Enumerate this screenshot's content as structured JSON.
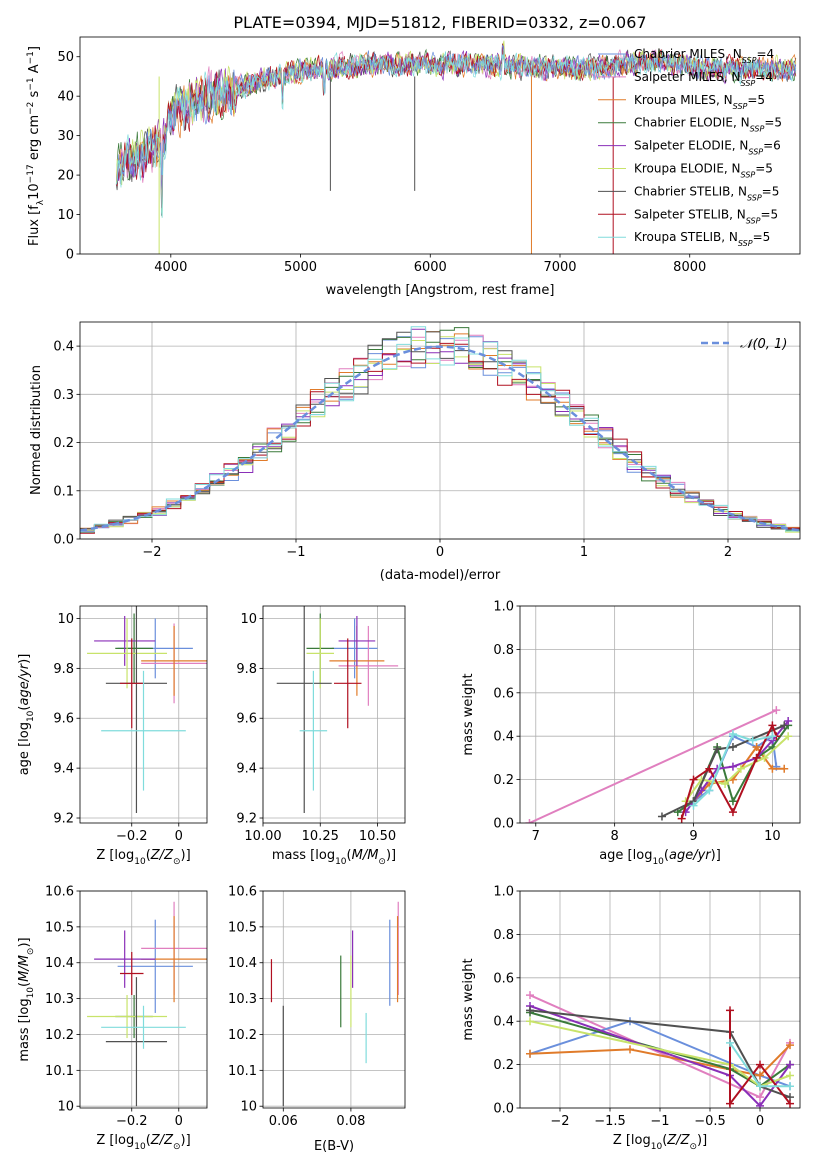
{
  "colors": {
    "Chabrier MILES": "#6a8fdc",
    "Salpeter MILES": "#e07fbf",
    "Kroupa MILES": "#e07b2a",
    "Chabrier ELODIE": "#3a7a3a",
    "Salpeter ELODIE": "#8a2fb8",
    "Kroupa ELODIE": "#c8e36a",
    "Chabrier STELIB": "#505050",
    "Salpeter STELIB": "#b01020",
    "Kroupa STELIB": "#80dcdc",
    "normal": "#6a8fdc"
  },
  "chart_data": [
    {
      "type": "line",
      "title": "PLATE=0394, MJD=51812, FIBERID=0332, z=0.067",
      "xlabel": "wavelength [Angstrom, rest frame]",
      "ylabel": "Flux [f_λ10^-17 erg cm^-2 s^-1 A^-1]",
      "xlim": [
        3300,
        8850
      ],
      "ylim": [
        0,
        55
      ],
      "xticks": [
        4000,
        5000,
        6000,
        7000,
        8000
      ],
      "yticks": [
        0,
        10,
        20,
        30,
        40,
        50
      ],
      "grid": false,
      "legend_position": "right",
      "spectrum_trend": [
        [
          3580,
          22
        ],
        [
          3700,
          24
        ],
        [
          3850,
          26
        ],
        [
          3950,
          28
        ],
        [
          3990,
          34
        ],
        [
          4050,
          37
        ],
        [
          4300,
          40
        ],
        [
          4600,
          43
        ],
        [
          4900,
          46
        ],
        [
          5200,
          47
        ],
        [
          5500,
          48
        ],
        [
          5800,
          48
        ],
        [
          6100,
          48
        ],
        [
          6400,
          48
        ],
        [
          6700,
          47.5
        ],
        [
          7000,
          47
        ],
        [
          7300,
          47
        ],
        [
          7550,
          48.5
        ],
        [
          7800,
          49
        ],
        [
          8100,
          47
        ],
        [
          8400,
          47
        ],
        [
          8800,
          47
        ]
      ],
      "series": [
        {
          "name": "Chabrier MILES, N_SSP=4",
          "color_key": "Chabrier MILES"
        },
        {
          "name": "Salpeter MILES, N_SSP=4",
          "color_key": "Salpeter MILES"
        },
        {
          "name": "Kroupa MILES, N_SSP=5",
          "color_key": "Kroupa MILES"
        },
        {
          "name": "Chabrier ELODIE, N_SSP=5",
          "color_key": "Chabrier ELODIE"
        },
        {
          "name": "Salpeter ELODIE, N_SSP=6",
          "color_key": "Salpeter ELODIE"
        },
        {
          "name": "Kroupa ELODIE, N_SSP=5",
          "color_key": "Kroupa ELODIE"
        },
        {
          "name": "Chabrier STELIB, N_SSP=5",
          "color_key": "Chabrier STELIB"
        },
        {
          "name": "Salpeter STELIB, N_SSP=5",
          "color_key": "Salpeter STELIB"
        },
        {
          "name": "Kroupa STELIB, N_SSP=5",
          "color_key": "Kroupa STELIB"
        }
      ]
    },
    {
      "type": "histogram",
      "xlabel": "(data-model)/error",
      "ylabel": "Normed distribution",
      "xlim": [
        -2.5,
        2.5
      ],
      "ylim": [
        0,
        0.45
      ],
      "xticks": [
        -2,
        -1,
        0,
        1,
        2
      ],
      "yticks": [
        0.0,
        0.1,
        0.2,
        0.3,
        0.4
      ],
      "grid": true,
      "legend": "𝒩(0, 1)",
      "legend_position": "top-right",
      "bin_width": 0.1
    },
    {
      "type": "errorbar",
      "xlabel": "Z [log10(Z/Z⊙)]",
      "ylabel": "age  [log10(age/yr)]",
      "xlim": [
        -0.42,
        0.12
      ],
      "ylim": [
        9.18,
        10.05
      ],
      "xticks": [
        -0.2,
        0.0
      ],
      "yticks": [
        9.2,
        9.4,
        9.6,
        9.8,
        10.0
      ],
      "grid": true,
      "points": [
        {
          "color_key": "Chabrier MILES",
          "x": -0.1,
          "xerr": 0.16,
          "y": 9.88,
          "yerr": 0.12
        },
        {
          "color_key": "Salpeter MILES",
          "x": -0.02,
          "xerr": 0.14,
          "y": 9.82,
          "yerr": 0.16
        },
        {
          "color_key": "Kroupa MILES",
          "x": -0.02,
          "xerr": 0.14,
          "y": 9.83,
          "yerr": 0.14
        },
        {
          "color_key": "Chabrier ELODIE",
          "x": -0.19,
          "xerr": 0.08,
          "y": 9.88,
          "yerr": 0.14
        },
        {
          "color_key": "Salpeter ELODIE",
          "x": -0.23,
          "xerr": 0.13,
          "y": 9.91,
          "yerr": 0.1
        },
        {
          "color_key": "Kroupa ELODIE",
          "x": -0.22,
          "xerr": 0.17,
          "y": 9.86,
          "yerr": 0.14
        },
        {
          "color_key": "Chabrier STELIB",
          "x": -0.18,
          "xerr": 0.13,
          "y": 9.74,
          "yerr": 0.52
        },
        {
          "color_key": "Salpeter STELIB",
          "x": -0.2,
          "xerr": 0.05,
          "y": 9.74,
          "yerr": 0.18
        },
        {
          "color_key": "Kroupa STELIB",
          "x": -0.15,
          "xerr": 0.18,
          "y": 9.55,
          "yerr": 0.24
        }
      ]
    },
    {
      "type": "errorbar",
      "xlabel": "mass [log10(M/M⊙)]",
      "ylabel": "",
      "xlim": [
        10.0,
        10.62
      ],
      "ylim": [
        9.18,
        10.05
      ],
      "xticks": [
        10.0,
        10.25,
        10.5
      ],
      "xtick_labels": [
        "10.00",
        "10.25",
        "10.50"
      ],
      "yticks": [
        9.2,
        9.4,
        9.6,
        9.8,
        10.0
      ],
      "grid": true,
      "points": [
        {
          "color_key": "Chabrier MILES",
          "x": 10.4,
          "xerr": 0.1,
          "y": 9.88,
          "yerr": 0.12
        },
        {
          "color_key": "Salpeter MILES",
          "x": 10.46,
          "xerr": 0.13,
          "y": 9.81,
          "yerr": 0.16
        },
        {
          "color_key": "Kroupa MILES",
          "x": 10.41,
          "xerr": 0.12,
          "y": 9.83,
          "yerr": 0.14
        },
        {
          "color_key": "Chabrier ELODIE",
          "x": 10.25,
          "xerr": 0.06,
          "y": 9.88,
          "yerr": 0.14
        },
        {
          "color_key": "Salpeter ELODIE",
          "x": 10.41,
          "xerr": 0.08,
          "y": 9.91,
          "yerr": 0.1
        },
        {
          "color_key": "Kroupa ELODIE",
          "x": 10.25,
          "xerr": 0.06,
          "y": 9.86,
          "yerr": 0.14
        },
        {
          "color_key": "Chabrier STELIB",
          "x": 10.18,
          "xerr": 0.12,
          "y": 9.74,
          "yerr": 0.52
        },
        {
          "color_key": "Salpeter STELIB",
          "x": 10.37,
          "xerr": 0.06,
          "y": 9.74,
          "yerr": 0.18
        },
        {
          "color_key": "Kroupa STELIB",
          "x": 10.22,
          "xerr": 0.06,
          "y": 9.55,
          "yerr": 0.24
        }
      ]
    },
    {
      "type": "line",
      "xlabel": "age  [log10(age/yr)]",
      "ylabel": "mass weight",
      "xlim": [
        6.8,
        10.35
      ],
      "ylim": [
        0,
        1.0
      ],
      "xticks": [
        7,
        8,
        9,
        10
      ],
      "yticks": [
        0.0,
        0.2,
        0.4,
        0.6,
        0.8,
        1.0
      ],
      "grid": true,
      "series": [
        {
          "color_key": "Salpeter MILES",
          "x": [
            6.92,
            10.05
          ],
          "y": [
            0.0,
            0.52
          ]
        },
        {
          "color_key": "Chabrier MILES",
          "x": [
            9.0,
            9.2,
            9.5,
            9.8,
            10.0,
            10.05
          ],
          "y": [
            0.1,
            0.15,
            0.4,
            0.35,
            0.4,
            0.26
          ]
        },
        {
          "color_key": "Kroupa MILES",
          "x": [
            9.0,
            9.2,
            9.5,
            9.8,
            10.0,
            10.15
          ],
          "y": [
            0.1,
            0.18,
            0.2,
            0.35,
            0.25,
            0.25
          ]
        },
        {
          "color_key": "Chabrier ELODIE",
          "x": [
            8.8,
            9.0,
            9.3,
            9.5,
            9.8,
            10.0,
            10.2
          ],
          "y": [
            0.05,
            0.1,
            0.35,
            0.1,
            0.3,
            0.35,
            0.45
          ]
        },
        {
          "color_key": "Salpeter ELODIE",
          "x": [
            8.9,
            9.1,
            9.3,
            9.5,
            9.8,
            10.0,
            10.2
          ],
          "y": [
            0.05,
            0.15,
            0.25,
            0.26,
            0.3,
            0.38,
            0.47
          ]
        },
        {
          "color_key": "Kroupa ELODIE",
          "x": [
            8.9,
            9.1,
            9.4,
            9.6,
            9.9,
            10.2
          ],
          "y": [
            0.1,
            0.2,
            0.18,
            0.25,
            0.3,
            0.4
          ]
        },
        {
          "color_key": "Chabrier STELIB",
          "x": [
            8.6,
            9.0,
            9.3,
            9.5,
            10.15
          ],
          "y": [
            0.03,
            0.1,
            0.34,
            0.35,
            0.45
          ]
        },
        {
          "color_key": "Salpeter STELIB",
          "x": [
            8.85,
            9.0,
            9.2,
            9.5,
            9.8,
            10.0,
            10.05
          ],
          "y": [
            0.02,
            0.2,
            0.25,
            0.05,
            0.3,
            0.45,
            0.4
          ]
        },
        {
          "color_key": "Kroupa STELIB",
          "x": [
            9.0,
            9.2,
            9.5,
            9.75,
            10.0
          ],
          "y": [
            0.08,
            0.15,
            0.41,
            0.38,
            0.4
          ]
        }
      ]
    },
    {
      "type": "errorbar",
      "xlabel": "Z [log10(Z/Z⊙)]",
      "ylabel": "mass [log10(M/M⊙)]",
      "xlim": [
        -0.42,
        0.12
      ],
      "ylim": [
        9.995,
        10.6
      ],
      "xticks": [
        -0.2,
        0.0
      ],
      "yticks": [
        10.0,
        10.1,
        10.2,
        10.3,
        10.4,
        10.5,
        10.6
      ],
      "grid": true,
      "points": [
        {
          "color_key": "Chabrier MILES",
          "x": -0.1,
          "xerr": 0.16,
          "y": 10.39,
          "yerr": 0.13
        },
        {
          "color_key": "Salpeter MILES",
          "x": -0.02,
          "xerr": 0.14,
          "y": 10.44,
          "yerr": 0.13
        },
        {
          "color_key": "Kroupa MILES",
          "x": -0.02,
          "xerr": 0.14,
          "y": 10.41,
          "yerr": 0.12
        },
        {
          "color_key": "Chabrier ELODIE",
          "x": -0.19,
          "xerr": 0.08,
          "y": 10.25,
          "yerr": 0.06
        },
        {
          "color_key": "Salpeter ELODIE",
          "x": -0.23,
          "xerr": 0.13,
          "y": 10.41,
          "yerr": 0.08
        },
        {
          "color_key": "Kroupa ELODIE",
          "x": -0.22,
          "xerr": 0.17,
          "y": 10.25,
          "yerr": 0.06
        },
        {
          "color_key": "Chabrier STELIB",
          "x": -0.18,
          "xerr": 0.13,
          "y": 10.18,
          "yerr": 0.18
        },
        {
          "color_key": "Salpeter STELIB",
          "x": -0.2,
          "xerr": 0.05,
          "y": 10.37,
          "yerr": 0.06
        },
        {
          "color_key": "Kroupa STELIB",
          "x": -0.15,
          "xerr": 0.18,
          "y": 10.22,
          "yerr": 0.06
        }
      ]
    },
    {
      "type": "errorbar",
      "xlabel": "E(B-V)",
      "ylabel": "",
      "xlim": [
        0.054,
        0.096
      ],
      "ylim": [
        9.995,
        10.6
      ],
      "xticks": [
        0.06,
        0.08
      ],
      "yticks": [
        10.0,
        10.1,
        10.2,
        10.3,
        10.4,
        10.5,
        10.6
      ],
      "grid": true,
      "points": [
        {
          "color_key": "Chabrier MILES",
          "x": 0.0915,
          "y": 10.4,
          "yerr": 0.12
        },
        {
          "color_key": "Salpeter MILES",
          "x": 0.094,
          "y": 10.44,
          "yerr": 0.13
        },
        {
          "color_key": "Kroupa MILES",
          "x": 0.0938,
          "y": 10.41,
          "yerr": 0.12
        },
        {
          "color_key": "Chabrier ELODIE",
          "x": 0.077,
          "y": 10.32,
          "yerr": 0.1
        },
        {
          "color_key": "Salpeter ELODIE",
          "x": 0.0805,
          "y": 10.41,
          "yerr": 0.08
        },
        {
          "color_key": "Kroupa ELODIE",
          "x": 0.08,
          "y": 10.32,
          "yerr": 0.1
        },
        {
          "color_key": "Chabrier STELIB",
          "x": 0.06,
          "y": 10.14,
          "yerr": 0.14
        },
        {
          "color_key": "Salpeter STELIB",
          "x": 0.0565,
          "y": 10.35,
          "yerr": 0.06
        },
        {
          "color_key": "Kroupa STELIB",
          "x": 0.0845,
          "y": 10.19,
          "yerr": 0.07
        }
      ]
    },
    {
      "type": "line",
      "xlabel": "Z [log10(Z/Z⊙)]",
      "ylabel": "mass weight",
      "xlim": [
        -2.4,
        0.4
      ],
      "ylim": [
        0,
        1.0
      ],
      "xticks": [
        -2.0,
        -1.5,
        -1.0,
        -0.5,
        0.0
      ],
      "yticks": [
        0.0,
        0.2,
        0.4,
        0.6,
        0.8,
        1.0
      ],
      "grid": true,
      "series": [
        {
          "color_key": "Salpeter MILES",
          "x": [
            -2.3,
            0.0,
            0.3
          ],
          "y": [
            0.52,
            0.05,
            0.3
          ]
        },
        {
          "color_key": "Chabrier MILES",
          "x": [
            -2.3,
            -1.3,
            0.0,
            0.3
          ],
          "y": [
            0.25,
            0.4,
            0.15,
            0.1
          ]
        },
        {
          "color_key": "Kroupa MILES",
          "x": [
            -2.3,
            -1.3,
            0.0,
            0.3
          ],
          "y": [
            0.25,
            0.27,
            0.15,
            0.29
          ]
        },
        {
          "color_key": "Chabrier ELODIE",
          "x": [
            -2.3,
            -0.3,
            0.0,
            0.3
          ],
          "y": [
            0.44,
            0.18,
            0.1,
            0.2
          ]
        },
        {
          "color_key": "Salpeter ELODIE",
          "x": [
            -2.3,
            -0.3,
            0.0,
            0.3
          ],
          "y": [
            0.47,
            0.15,
            0.01,
            0.2
          ]
        },
        {
          "color_key": "Kroupa ELODIE",
          "x": [
            -2.3,
            -0.3,
            0.0,
            0.3
          ],
          "y": [
            0.4,
            0.2,
            0.1,
            0.15
          ]
        },
        {
          "color_key": "Chabrier STELIB",
          "x": [
            -2.3,
            -0.3,
            0.0,
            0.3
          ],
          "y": [
            0.45,
            0.35,
            0.1,
            0.05
          ]
        },
        {
          "color_key": "Salpeter STELIB",
          "x": [
            -0.3,
            -0.3,
            0.0,
            0.3
          ],
          "y": [
            0.45,
            0.02,
            0.2,
            0.02
          ]
        },
        {
          "color_key": "Kroupa STELIB",
          "x": [
            -0.3,
            0.0,
            0.3
          ],
          "y": [
            0.3,
            0.1,
            0.1
          ]
        }
      ]
    }
  ]
}
